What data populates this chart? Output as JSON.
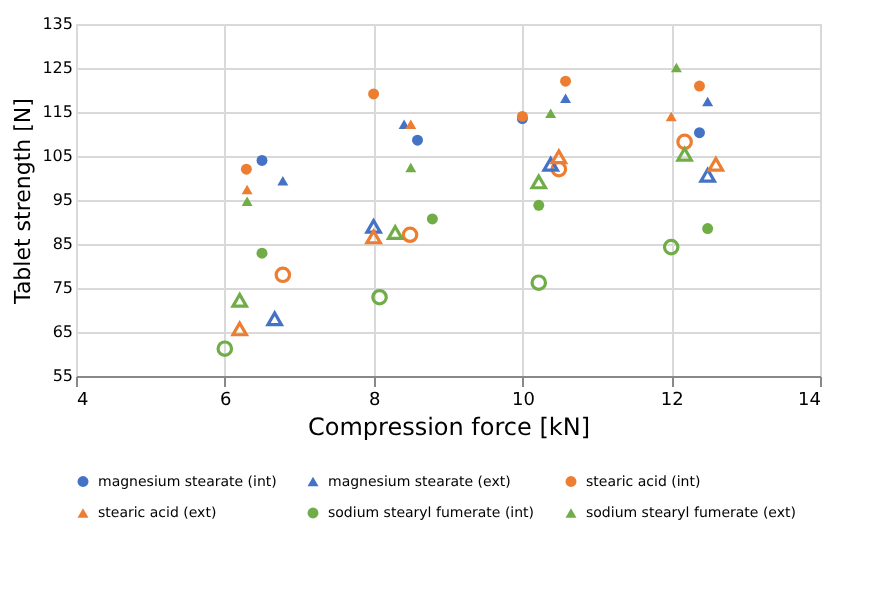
{
  "chart_data": {
    "type": "scatter",
    "xlabel": "Compression force [kN]",
    "ylabel": "Tablet strength [N]",
    "xlim": [
      4,
      14
    ],
    "xticks": [
      4,
      6,
      8,
      10,
      12,
      14
    ],
    "ylim": [
      55,
      135
    ],
    "yticks": [
      55,
      65,
      75,
      85,
      95,
      105,
      115,
      125,
      135
    ],
    "grid": true,
    "legend": "bottom",
    "series": [
      {
        "name": "magnesium stearate (int)",
        "color": "#4472c4",
        "marker": "circle",
        "x": [
          6.5,
          8.59,
          10.0,
          12.38
        ],
        "values": [
          104,
          108.6,
          113.5,
          110.3
        ]
      },
      {
        "name": "magnesium stearate (ext)",
        "color": "#4472c4",
        "marker": "triangle",
        "x": [
          6.78,
          8.41,
          10.58,
          12.49
        ],
        "values": [
          99.4,
          112.2,
          118.1,
          117.4
        ]
      },
      {
        "name": "stearic acid (int)",
        "color": "#ed7d31",
        "marker": "circle",
        "x": [
          6.29,
          8.0,
          10.0,
          10.58,
          12.38
        ],
        "values": [
          102,
          119.1,
          114,
          122,
          120.9
        ]
      },
      {
        "name": "stearic acid (ext)",
        "color": "#ed7d31",
        "marker": "triangle",
        "x": [
          6.3,
          8.5,
          12.0
        ],
        "values": [
          97.4,
          112.2,
          114
        ]
      },
      {
        "name": "sodium stearyl fumerate (int)",
        "color": "#70ad47",
        "marker": "circle",
        "x": [
          6.5,
          8.79,
          10.22,
          12.49
        ],
        "values": [
          82.9,
          90.7,
          93.8,
          88.5
        ]
      },
      {
        "name": "sodium stearyl fumerate (ext)",
        "color": "#70ad47",
        "marker": "triangle",
        "x": [
          6.3,
          8.5,
          10.38,
          12.07
        ],
        "values": [
          94.7,
          102.4,
          114.7,
          125.1
        ]
      },
      {
        "color": "#ed7d31",
        "marker": "circle",
        "x": [
          6.78,
          8.49,
          10.49,
          12.18
        ],
        "values": [
          78,
          87.1,
          102,
          108.2
        ]
      },
      {
        "color": "#4472c4",
        "marker": "triangle",
        "x": [
          6.67,
          8.0,
          10.38,
          12.49
        ],
        "values": [
          68,
          89,
          103.1,
          100.6
        ]
      },
      {
        "color": "#ed7d31",
        "marker": "triangle",
        "x": [
          6.2,
          8.0,
          10.49,
          12.6
        ],
        "values": [
          65.7,
          86.6,
          104.8,
          103.1
        ]
      },
      {
        "color": "#70ad47",
        "marker": "circle",
        "x": [
          6.0,
          8.08,
          10.22,
          12.0
        ],
        "values": [
          61.2,
          72.9,
          76.2,
          84.3
        ]
      },
      {
        "color": "#70ad47",
        "marker": "triangle",
        "x": [
          6.2,
          8.29,
          10.22,
          12.18
        ],
        "values": [
          72.2,
          87.6,
          99.1,
          105.4
        ]
      }
    ]
  }
}
